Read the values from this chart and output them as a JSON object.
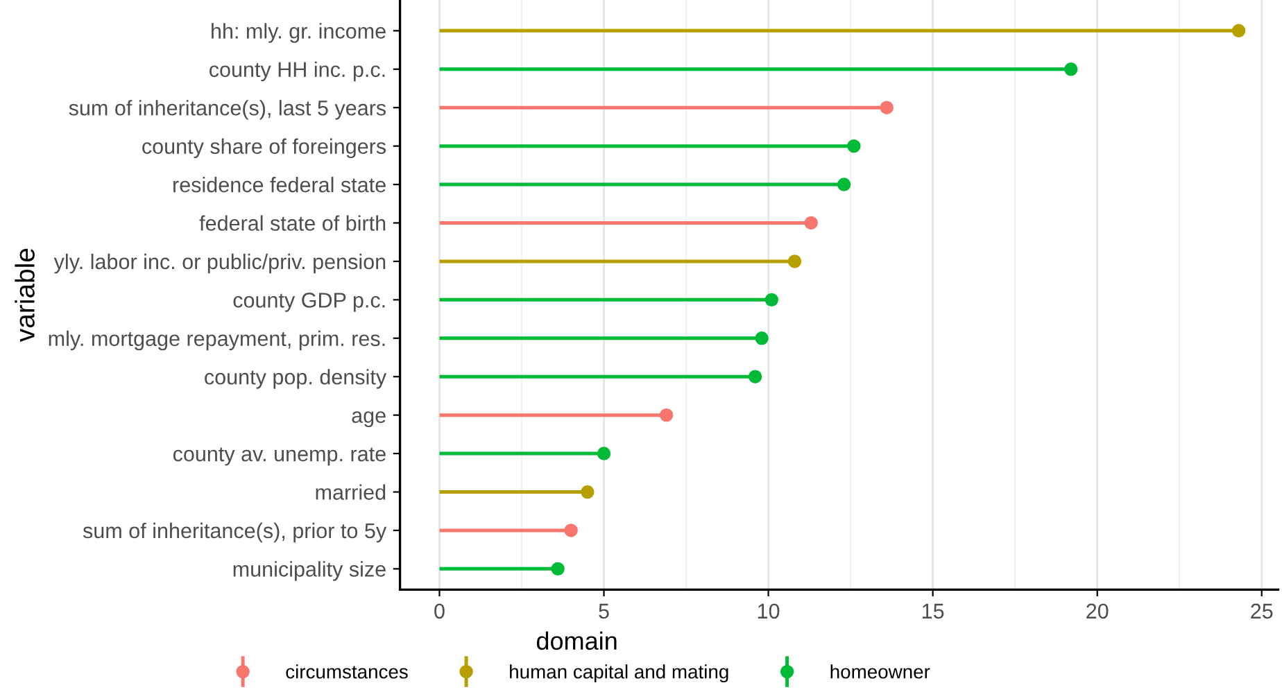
{
  "chart_data": {
    "type": "lollipop",
    "orientation": "horizontal",
    "ylabel": "variable",
    "legend_title": "domain",
    "categories": [
      "hh: mly. gr. income",
      "county HH inc. p.c.",
      "sum of inheritance(s), last 5 years",
      "county share of foreingers",
      "residence federal state",
      "federal state of birth",
      "yly. labor inc. or public/priv. pension",
      "county GDP p.c.",
      "mly. mortgage repayment, prim. res.",
      "county pop. density",
      "age",
      "county av. unemp. rate",
      "married",
      "sum of inheritance(s), prior to 5y",
      "municipality size"
    ],
    "series": [
      {
        "name": "circumstances",
        "color": "#f8766d",
        "values": [
          null,
          null,
          13.6,
          null,
          null,
          11.3,
          null,
          null,
          null,
          null,
          6.9,
          null,
          null,
          4.0,
          null
        ]
      },
      {
        "name": "human capital and mating",
        "color": "#b79f00",
        "values": [
          24.3,
          null,
          null,
          null,
          null,
          null,
          10.8,
          null,
          null,
          null,
          null,
          null,
          4.5,
          null,
          null
        ]
      },
      {
        "name": "homeowner",
        "color": "#00ba38",
        "values": [
          null,
          19.2,
          null,
          12.6,
          12.3,
          null,
          null,
          10.1,
          9.8,
          9.6,
          null,
          5.0,
          null,
          null,
          3.6
        ]
      }
    ],
    "xlim": [
      -1.2,
      25.5
    ],
    "xticks": [
      0,
      5,
      10,
      15,
      20,
      25
    ],
    "grid": "x",
    "legend": "bottom",
    "marker": "circle"
  }
}
